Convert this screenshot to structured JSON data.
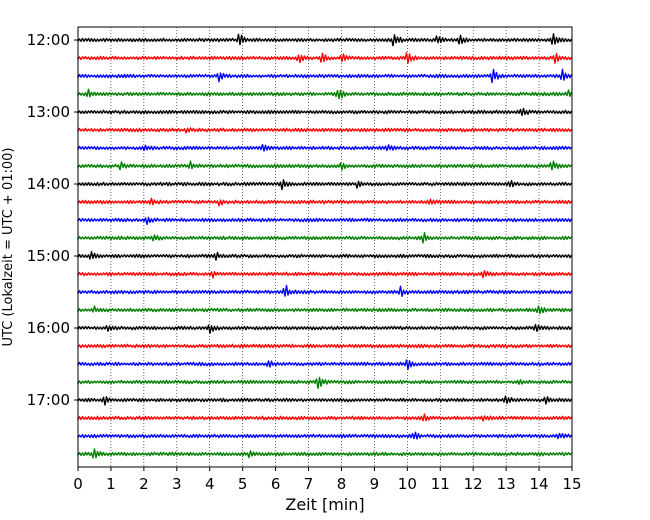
{
  "chart_data": {
    "type": "line",
    "title": "",
    "xlabel": "Zeit  [min]",
    "ylabel": "UTC (Lokalzeit = UTC + 01:00)",
    "xlim": [
      0,
      15
    ],
    "x_ticks": [
      0,
      1,
      2,
      3,
      4,
      5,
      6,
      7,
      8,
      9,
      10,
      11,
      12,
      13,
      14,
      15
    ],
    "x_tick_labels": [
      "0",
      "1",
      "2",
      "3",
      "4",
      "5",
      "6",
      "7",
      "8",
      "9",
      "10",
      "11",
      "12",
      "13",
      "14",
      "15"
    ],
    "grid": "vertical-dotted",
    "trace_interval_min": 15,
    "start_time": "12:00",
    "y_tick_labels": [
      "12:00",
      "13:00",
      "14:00",
      "15:00",
      "16:00",
      "17:00"
    ],
    "trace_colors": [
      "#000000",
      "#ff0000",
      "#0000ff",
      "#008000"
    ],
    "series": [
      {
        "name": "12:00",
        "color": "#000000",
        "events": [
          [
            4.9,
            0.9
          ],
          [
            9.6,
            1.0
          ],
          [
            10.9,
            0.5
          ],
          [
            11.6,
            0.6
          ],
          [
            14.4,
            0.9
          ]
        ]
      },
      {
        "name": "12:15",
        "color": "#ff0000",
        "events": [
          [
            6.7,
            0.6
          ],
          [
            7.4,
            0.8
          ],
          [
            8.0,
            0.6
          ],
          [
            10.0,
            0.7
          ],
          [
            14.5,
            0.6
          ]
        ]
      },
      {
        "name": "12:30",
        "color": "#0000ff",
        "events": [
          [
            4.3,
            0.7
          ],
          [
            12.6,
            1.0
          ],
          [
            14.7,
            0.8
          ]
        ]
      },
      {
        "name": "12:45",
        "color": "#008000",
        "events": [
          [
            0.3,
            0.5
          ],
          [
            7.9,
            1.0
          ],
          [
            14.9,
            0.5
          ]
        ]
      },
      {
        "name": "13:00",
        "color": "#000000",
        "events": [
          [
            13.5,
            0.6
          ]
        ]
      },
      {
        "name": "13:15",
        "color": "#ff0000",
        "events": [
          [
            3.3,
            0.3
          ]
        ]
      },
      {
        "name": "13:30",
        "color": "#0000ff",
        "events": [
          [
            2.0,
            0.4
          ],
          [
            5.6,
            0.4
          ],
          [
            9.4,
            0.4
          ]
        ]
      },
      {
        "name": "13:45",
        "color": "#008000",
        "events": [
          [
            1.3,
            0.4
          ],
          [
            3.4,
            0.5
          ],
          [
            14.4,
            0.7
          ],
          [
            8.0,
            0.4
          ]
        ]
      },
      {
        "name": "14:00",
        "color": "#000000",
        "events": [
          [
            6.2,
            0.6
          ],
          [
            8.5,
            0.5
          ],
          [
            13.1,
            0.5
          ]
        ]
      },
      {
        "name": "14:15",
        "color": "#ff0000",
        "events": [
          [
            2.2,
            0.4
          ],
          [
            4.3,
            0.4
          ],
          [
            10.7,
            0.4
          ]
        ]
      },
      {
        "name": "14:30",
        "color": "#0000ff",
        "events": [
          [
            2.1,
            0.5
          ]
        ]
      },
      {
        "name": "14:45",
        "color": "#008000",
        "events": [
          [
            2.3,
            0.4
          ],
          [
            10.5,
            0.8
          ]
        ]
      },
      {
        "name": "15:00",
        "color": "#000000",
        "events": [
          [
            0.4,
            0.5
          ],
          [
            4.2,
            0.4
          ]
        ]
      },
      {
        "name": "15:15",
        "color": "#ff0000",
        "events": [
          [
            4.1,
            0.3
          ],
          [
            12.3,
            0.4
          ]
        ]
      },
      {
        "name": "15:30",
        "color": "#0000ff",
        "events": [
          [
            6.3,
            1.0
          ],
          [
            9.8,
            0.6
          ]
        ]
      },
      {
        "name": "15:45",
        "color": "#008000",
        "events": [
          [
            0.5,
            0.3
          ],
          [
            14.0,
            0.6
          ]
        ]
      },
      {
        "name": "16:00",
        "color": "#000000",
        "events": [
          [
            0.9,
            0.6
          ],
          [
            4.0,
            0.6
          ],
          [
            13.9,
            0.5
          ]
        ]
      },
      {
        "name": "16:15",
        "color": "#ff0000",
        "events": []
      },
      {
        "name": "16:30",
        "color": "#0000ff",
        "events": [
          [
            5.8,
            0.4
          ],
          [
            10.0,
            0.6
          ]
        ]
      },
      {
        "name": "16:45",
        "color": "#008000",
        "events": [
          [
            7.3,
            1.0
          ],
          [
            13.4,
            0.4
          ]
        ]
      },
      {
        "name": "17:00",
        "color": "#000000",
        "events": [
          [
            0.8,
            0.7
          ],
          [
            13.0,
            0.7
          ],
          [
            14.2,
            0.6
          ]
        ]
      },
      {
        "name": "17:15",
        "color": "#ff0000",
        "events": [
          [
            10.5,
            0.5
          ],
          [
            12.3,
            0.5
          ]
        ]
      },
      {
        "name": "17:30",
        "color": "#0000ff",
        "events": [
          [
            10.2,
            0.5
          ],
          [
            14.6,
            0.3
          ]
        ]
      },
      {
        "name": "17:45",
        "color": "#008000",
        "events": [
          [
            0.5,
            0.8
          ],
          [
            5.2,
            0.3
          ]
        ]
      }
    ]
  }
}
